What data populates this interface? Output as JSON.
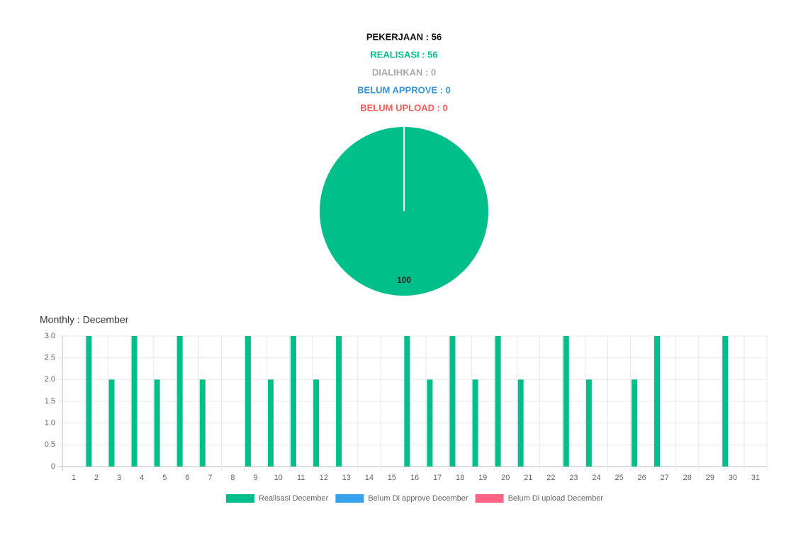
{
  "summary": [
    {
      "text": "PEKERJAAN : 56",
      "color": "#111111"
    },
    {
      "text": "REALISASI : 56",
      "color": "#00bf8a"
    },
    {
      "text": "DIALIHKAN : 0",
      "color": "#aaaaaa"
    },
    {
      "text": "BELUM APPROVE : 0",
      "color": "#3498db"
    },
    {
      "text": "BELUM UPLOAD : 0",
      "color": "#ff5a5a"
    }
  ],
  "chart_data": [
    {
      "type": "pie",
      "values": [
        100
      ],
      "colors": [
        "#00bf8a"
      ]
    },
    {
      "type": "bar",
      "title": "Monthly : December",
      "categories": [
        "1",
        "2",
        "3",
        "4",
        "5",
        "6",
        "7",
        "8",
        "9",
        "10",
        "11",
        "12",
        "13",
        "14",
        "15",
        "16",
        "17",
        "18",
        "19",
        "20",
        "21",
        "22",
        "23",
        "24",
        "25",
        "26",
        "27",
        "28",
        "29",
        "30",
        "31"
      ],
      "series": [
        {
          "name": "Realisasi December",
          "color": "#00bf8a",
          "values": [
            0,
            3,
            2,
            3,
            2,
            3,
            2,
            0,
            3,
            2,
            3,
            2,
            3,
            0,
            0,
            3,
            2,
            3,
            2,
            3,
            2,
            0,
            3,
            2,
            0,
            2,
            3,
            0,
            0,
            3,
            0
          ]
        },
        {
          "name": "Belum Di approve December",
          "color": "#36a2eb",
          "values": [
            0,
            0,
            0,
            0,
            0,
            0,
            0,
            0,
            0,
            0,
            0,
            0,
            0,
            0,
            0,
            0,
            0,
            0,
            0,
            0,
            0,
            0,
            0,
            0,
            0,
            0,
            0,
            0,
            0,
            0,
            0
          ]
        },
        {
          "name": "Belum Di upload December",
          "color": "#ff6384",
          "values": [
            0,
            0,
            0,
            0,
            0,
            0,
            0,
            0,
            0,
            0,
            0,
            0,
            0,
            0,
            0,
            0,
            0,
            0,
            0,
            0,
            0,
            0,
            0,
            0,
            0,
            0,
            0,
            0,
            0,
            0,
            0
          ]
        }
      ],
      "ylim": [
        0,
        3
      ],
      "yticks": [
        0,
        0.5,
        {
          "value": 1,
          "label": "1.0"
        },
        1.5,
        {
          "value": 2,
          "label": "2.0"
        },
        2.5,
        {
          "value": 3,
          "label": "3.0"
        }
      ],
      "grid": true,
      "legend": "bottom"
    }
  ]
}
